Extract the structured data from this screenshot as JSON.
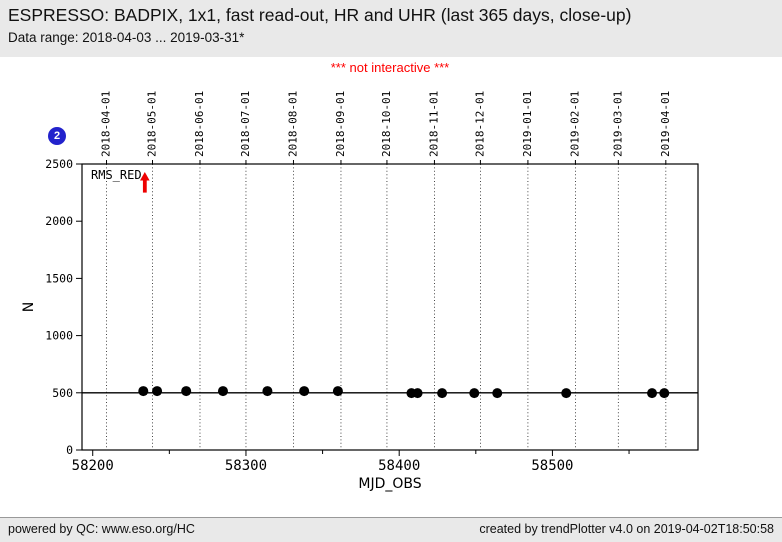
{
  "header": {
    "title": "ESPRESSO: BADPIX, 1x1, fast read-out, HR and UHR (last 365 days, close-up)",
    "data_range": "Data range: 2018-04-03 ... 2019-03-31*"
  },
  "banner": {
    "text": "*** not interactive ***",
    "color": "#ff0000"
  },
  "badge": {
    "number": "2",
    "color": "#2222cc"
  },
  "footer": {
    "left": "powered by QC: www.eso.org/HC",
    "right": "created by trendPlotter v4.0 on 2019-04-02T18:50:58"
  },
  "chart_data": {
    "type": "scatter",
    "title": "",
    "xlabel": "MJD_OBS",
    "ylabel": "N",
    "xlim": [
      58193,
      58595
    ],
    "ylim": [
      0,
      2500
    ],
    "x_major_ticks": [
      58200,
      58300,
      58400,
      58500
    ],
    "x_minor_ticks": [
      58250,
      58350,
      58450,
      58550
    ],
    "y_ticks": [
      0,
      500,
      1000,
      1500,
      2000,
      2500
    ],
    "top_axis_date_ticks": [
      {
        "label": "2018-04-01",
        "mjd": 58209
      },
      {
        "label": "2018-05-01",
        "mjd": 58239
      },
      {
        "label": "2018-06-01",
        "mjd": 58270
      },
      {
        "label": "2018-07-01",
        "mjd": 58300
      },
      {
        "label": "2018-08-01",
        "mjd": 58331
      },
      {
        "label": "2018-09-01",
        "mjd": 58362
      },
      {
        "label": "2018-10-01",
        "mjd": 58392
      },
      {
        "label": "2018-11-01",
        "mjd": 58423
      },
      {
        "label": "2018-12-01",
        "mjd": 58453
      },
      {
        "label": "2019-01-01",
        "mjd": 58484
      },
      {
        "label": "2019-02-01",
        "mjd": 58515
      },
      {
        "label": "2019-03-01",
        "mjd": 58543
      },
      {
        "label": "2019-04-01",
        "mjd": 58574
      }
    ],
    "grid": {
      "vertical_dotted_at_date_ticks": true,
      "horizontal": false
    },
    "reference_line": {
      "y": 500,
      "color": "#000000"
    },
    "legend": "none",
    "series": [
      {
        "name": "N",
        "marker": "filled-circle",
        "color": "#000000",
        "points": [
          [
            58233,
            515
          ],
          [
            58242,
            515
          ],
          [
            58261,
            515
          ],
          [
            58285,
            515
          ],
          [
            58314,
            515
          ],
          [
            58338,
            515
          ],
          [
            58360,
            515
          ],
          [
            58408,
            497
          ],
          [
            58412,
            497
          ],
          [
            58428,
            497
          ],
          [
            58449,
            497
          ],
          [
            58464,
            497
          ],
          [
            58509,
            497
          ],
          [
            58565,
            497
          ],
          [
            58573,
            497
          ]
        ]
      }
    ],
    "annotations": [
      {
        "text": "RMS_RED",
        "type": "off-scale-up-arrow",
        "x_mjd": 58234,
        "arrow_y_from": 2250,
        "arrow_y_to": 2430,
        "arrow_color": "#ee0000",
        "text_color": "#000000"
      }
    ]
  }
}
